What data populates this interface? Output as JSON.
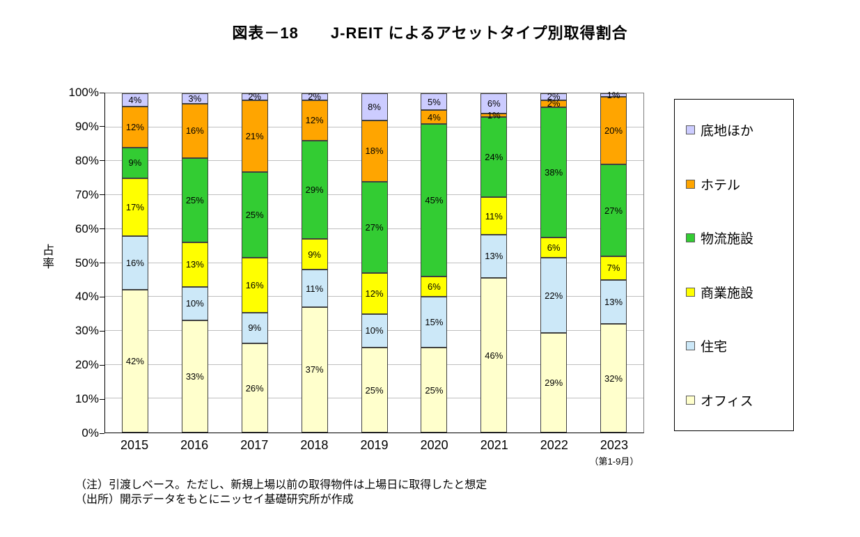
{
  "title": "図表－18　　J-REIT によるアセットタイプ別取得割合",
  "chart_data": {
    "type": "bar",
    "subtype": "stacked-percent",
    "categories": [
      "2015",
      "2016",
      "2017",
      "2018",
      "2019",
      "2020",
      "2021",
      "2022",
      "2023"
    ],
    "category_note": "（第1-9月）",
    "series": [
      {
        "name": "オフィス",
        "color": "#FFFFCC",
        "values": [
          42,
          33,
          26,
          37,
          25,
          25,
          46,
          29,
          32
        ]
      },
      {
        "name": "住宅",
        "color": "#CCE8F8",
        "values": [
          16,
          10,
          9,
          11,
          10,
          15,
          13,
          22,
          13
        ]
      },
      {
        "name": "商業施設",
        "color": "#FFFF00",
        "values": [
          17,
          13,
          16,
          9,
          12,
          6,
          11,
          6,
          7
        ]
      },
      {
        "name": "物流施設",
        "color": "#33CC33",
        "values": [
          9,
          25,
          25,
          29,
          27,
          45,
          24,
          38,
          27
        ]
      },
      {
        "name": "ホテル",
        "color": "#FFA500",
        "values": [
          12,
          16,
          21,
          12,
          18,
          4,
          1,
          2,
          20
        ]
      },
      {
        "name": "底地ほか",
        "color": "#CCCCFF",
        "values": [
          4,
          3,
          2,
          2,
          8,
          5,
          6,
          2,
          1
        ]
      }
    ],
    "ylabel": "占率",
    "xlabel": "",
    "ylim": [
      0,
      100
    ],
    "ytick_step": 10,
    "ytick_suffix": "%",
    "grid": true,
    "legend_position": "right",
    "legend_order_top_to_bottom": [
      "底地ほか",
      "ホテル",
      "物流施設",
      "商業施設",
      "住宅",
      "オフィス"
    ]
  },
  "notes": {
    "line1": "（注）引渡しベース。ただし、新規上場以前の取得物件は上場日に取得したと想定",
    "line2": "（出所）開示データをもとにニッセイ基礎研究所が作成"
  }
}
